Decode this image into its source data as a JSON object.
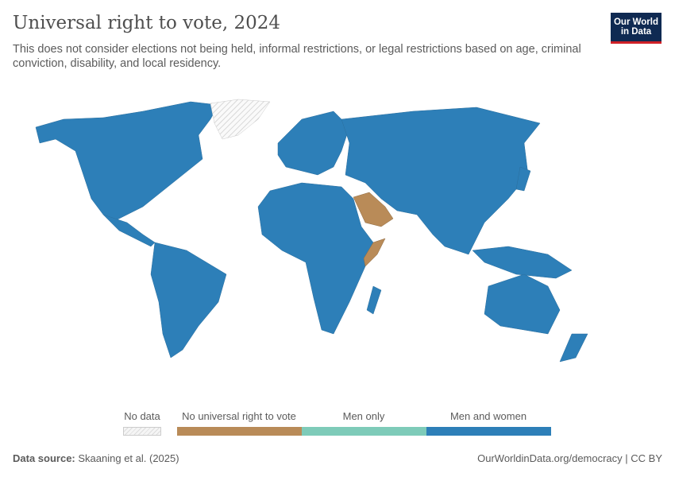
{
  "header": {
    "title": "Universal right to vote, 2024",
    "subtitle": "This does not consider elections not being held, informal restrictions, or legal restrictions based on age, criminal conviction, disability, and local residency.",
    "logo": "Our World in Data"
  },
  "legend": {
    "no_data": "No data",
    "categories": [
      {
        "label": "No universal right to vote",
        "color": "#b98b58"
      },
      {
        "label": "Men only",
        "color": "#7ecbb9"
      },
      {
        "label": "Men and women",
        "color": "#2d7fb8"
      }
    ]
  },
  "map": {
    "default_category": "Men and women",
    "no_universal_regions": [
      "Saudi Arabia",
      "Somalia"
    ],
    "no_data_regions": [
      "Greenland"
    ]
  },
  "footer": {
    "source_label": "Data source:",
    "source": "Skaaning et al. (2025)",
    "url": "OurWorldinData.org/democracy | CC BY"
  }
}
